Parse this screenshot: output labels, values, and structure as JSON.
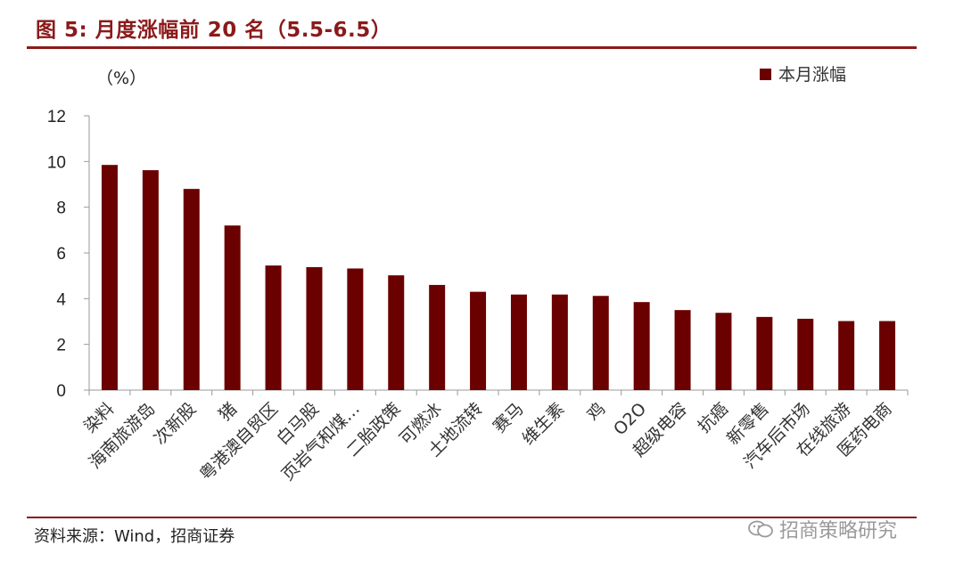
{
  "header": {
    "title": "图 5:  月度涨幅前 20 名（5.5-6.5）"
  },
  "footer": {
    "source": "资料来源：Wind，招商证券",
    "watermark": "招商策略研究"
  },
  "colors": {
    "bar": "#6b0000",
    "accent": "#8b1a1a",
    "axis": "#9a9a9a",
    "text": "#333333"
  },
  "chart_data": {
    "type": "bar",
    "unit_label": "（%）",
    "categories": [
      "染料",
      "海南旅游岛",
      "次新股",
      "猪",
      "粤港澳自贸区",
      "白马股",
      "页岩气和煤…",
      "二胎政策",
      "可燃冰",
      "土地流转",
      "赛马",
      "维生素",
      "鸡",
      "O2O",
      "超级电容",
      "抗癌",
      "新零售",
      "汽车后市场",
      "在线旅游",
      "医药电商"
    ],
    "series": [
      {
        "name": "本月涨幅",
        "values": [
          9.85,
          9.62,
          8.8,
          7.2,
          5.45,
          5.38,
          5.32,
          5.02,
          4.6,
          4.3,
          4.18,
          4.18,
          4.12,
          3.85,
          3.5,
          3.38,
          3.2,
          3.12,
          3.02,
          3.02
        ]
      }
    ],
    "yticks": [
      "0",
      "2",
      "4",
      "6",
      "8",
      "10",
      "12"
    ],
    "ylim": [
      0,
      12
    ],
    "legend_position": "top-right",
    "grid": false
  }
}
